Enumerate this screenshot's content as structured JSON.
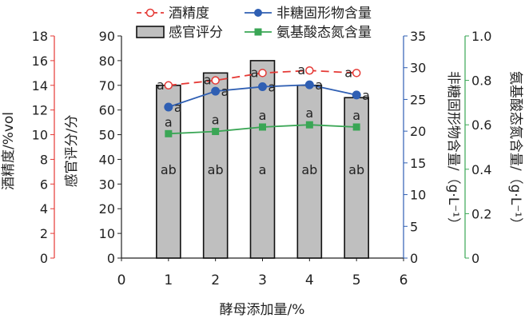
{
  "chart_data": {
    "type": "bar",
    "title": "",
    "xlabel": "酵母添加量/%",
    "x_ticks": [
      "0",
      "1",
      "2",
      "3",
      "4",
      "5",
      "6"
    ],
    "xlim": [
      0,
      6
    ],
    "x": [
      1,
      2,
      3,
      4,
      5
    ],
    "axes": {
      "alcohol": {
        "label": "酒精度/%vol",
        "ylim": [
          0,
          18
        ],
        "ticks": [
          "0",
          "2",
          "4",
          "6",
          "8",
          "10",
          "12",
          "14",
          "16",
          "18"
        ],
        "color": "#e53935"
      },
      "sensory": {
        "label": "感官评分/分",
        "ylim": [
          0,
          90
        ],
        "ticks": [
          "0",
          "10",
          "20",
          "30",
          "40",
          "50",
          "60",
          "70",
          "80",
          "90"
        ],
        "color": "#222222"
      },
      "solids": {
        "label": "非糖固形物含量/（g·L⁻¹）",
        "ylim": [
          0,
          35
        ],
        "ticks": [
          "0",
          "5",
          "10",
          "15",
          "20",
          "25",
          "30",
          "35"
        ],
        "color": "#2f5fb3"
      },
      "amino": {
        "label": "氨基酸态氮含量/（g·L⁻¹）",
        "ylim": [
          0,
          1.0
        ],
        "ticks": [
          "0",
          "0.2",
          "0.4",
          "0.6",
          "0.8",
          "1.0"
        ],
        "color": "#3aa655"
      }
    },
    "series": [
      {
        "name": "感官评分",
        "kind": "bar",
        "axis": "sensory",
        "values": [
          70,
          75,
          80,
          70,
          65
        ],
        "labels": [
          "ab",
          "ab",
          "a",
          "ab",
          "ab"
        ],
        "color": "#bfbfbf"
      },
      {
        "name": "酒精度",
        "kind": "line-dashed",
        "axis": "alcohol",
        "values": [
          14.0,
          14.4,
          15.0,
          15.2,
          15.0
        ],
        "labels": [
          "a",
          "a",
          "a",
          "a",
          "a"
        ],
        "color": "#e53935"
      },
      {
        "name": "非糖固形物含量",
        "kind": "line",
        "axis": "solids",
        "values": [
          23.8,
          26.3,
          27.0,
          27.3,
          25.7
        ],
        "labels": [
          "a",
          "a",
          "a",
          "a",
          "a"
        ],
        "color": "#2f5fb3"
      },
      {
        "name": "氨基酸态氮含量",
        "kind": "line",
        "axis": "amino",
        "values": [
          0.56,
          0.57,
          0.59,
          0.6,
          0.59
        ],
        "labels": [
          "a",
          "a",
          "a",
          "a",
          "a"
        ],
        "color": "#3aa655"
      }
    ],
    "legend": {
      "placement": "top",
      "order": [
        "酒精度",
        "非糖固形物含量",
        "感官评分",
        "氨基酸态氮含量"
      ]
    },
    "grid": false
  }
}
